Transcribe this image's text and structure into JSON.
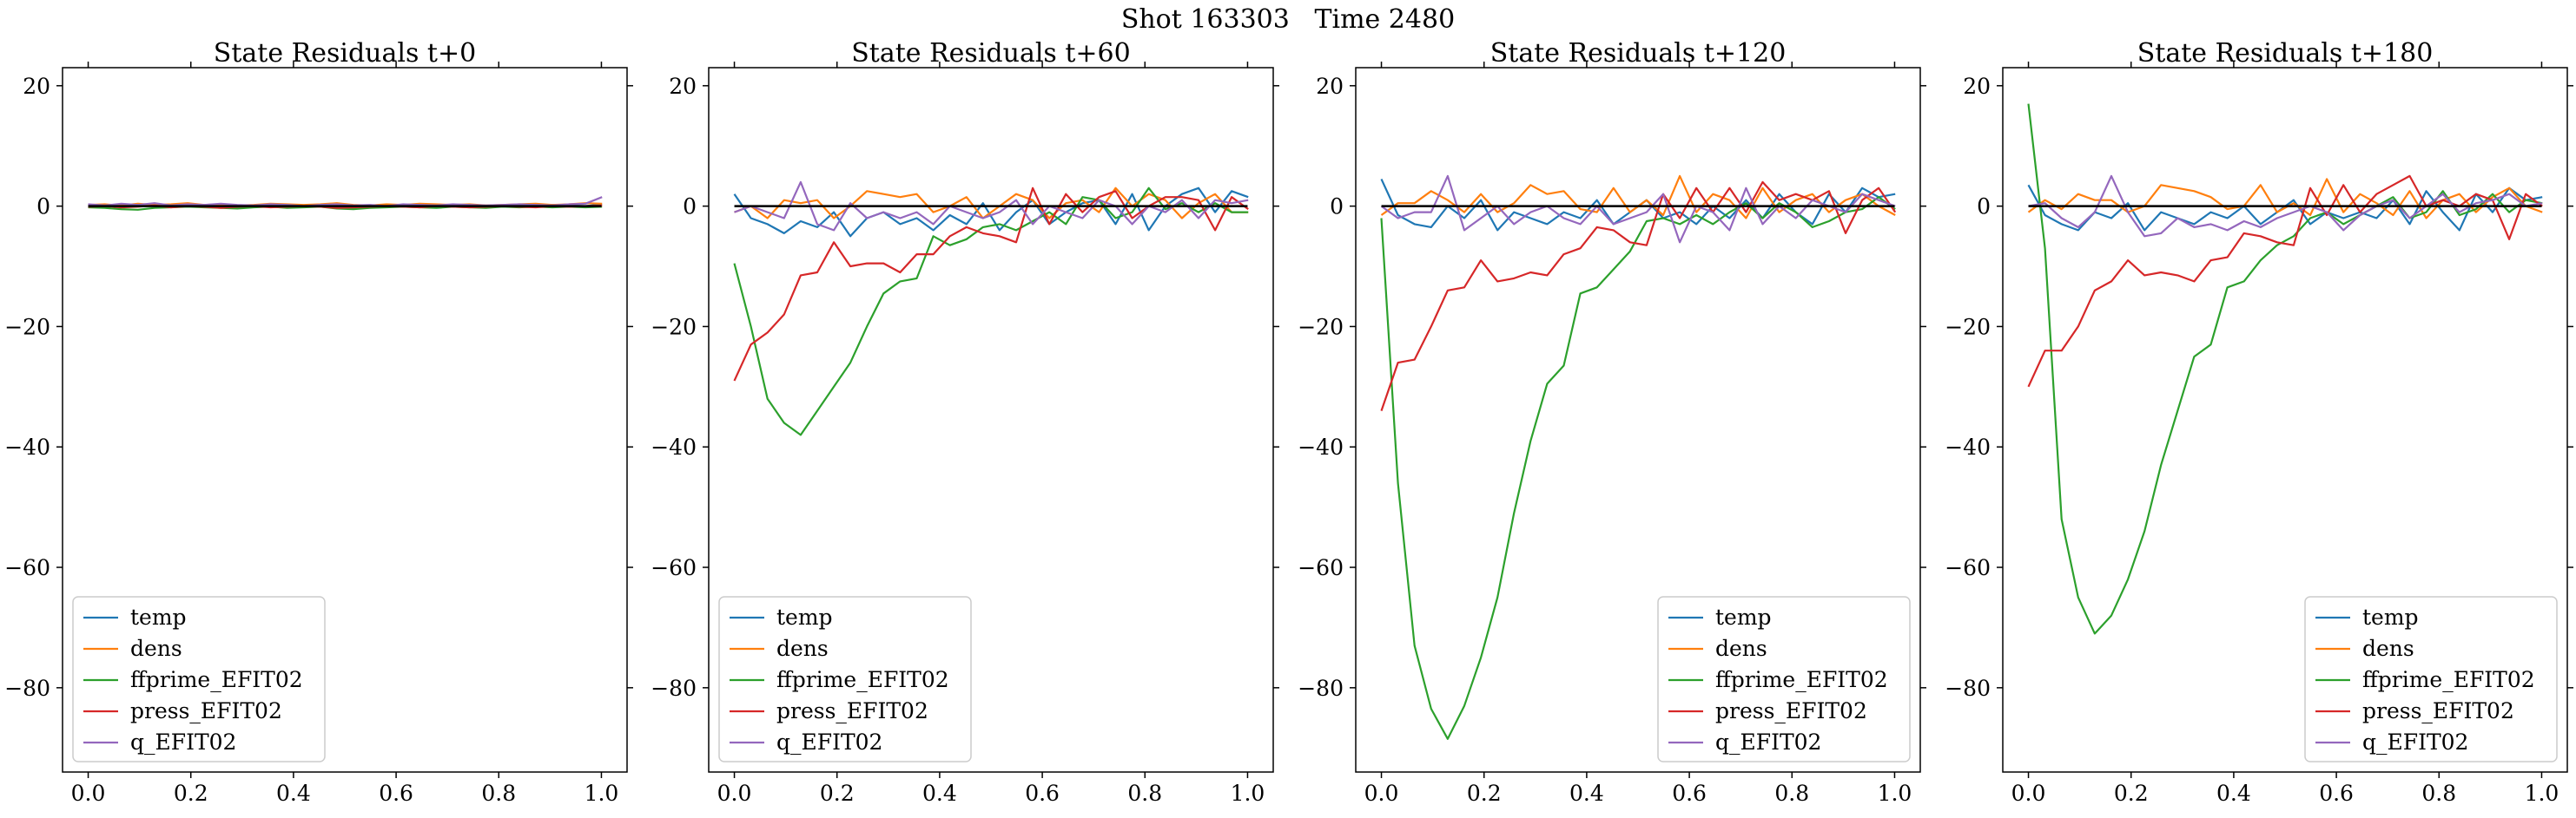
{
  "figure": {
    "suptitle": "Shot 163303   Time 2480"
  },
  "series_meta": [
    {
      "name": "temp",
      "color": "#1f77b4"
    },
    {
      "name": "dens",
      "color": "#ff7f0e"
    },
    {
      "name": "ffprime_EFIT02",
      "color": "#2ca02c"
    },
    {
      "name": "press_EFIT02",
      "color": "#d62728"
    },
    {
      "name": "q_EFIT02",
      "color": "#9467bd"
    }
  ],
  "chart_data": [
    {
      "type": "line",
      "title": "State Residuals t+0",
      "xlim": [
        -0.05,
        1.05
      ],
      "ylim": [
        -94,
        23
      ],
      "xticks": [
        "0.0",
        "0.2",
        "0.4",
        "0.6",
        "0.8",
        "1.0"
      ],
      "yticks": [
        "20",
        "0",
        "−20",
        "−40",
        "−60",
        "−80"
      ],
      "legend": "lower-left",
      "x_step": 0.0323,
      "n": 32,
      "series": [
        {
          "name": "temp",
          "color": "#1f77b4",
          "values": [
            0.1,
            0.0,
            -0.1,
            0.1,
            0.2,
            0.0,
            -0.1,
            0.1,
            0.0,
            -0.2,
            0.1,
            0.2,
            0.0,
            -0.1,
            0.1,
            0.0,
            -0.1,
            0.1,
            0.2,
            0.0,
            -0.1,
            0.0,
            0.1,
            0.2,
            0.0,
            -0.1,
            0.1,
            0.0,
            0.2,
            0.1,
            0.0,
            0.3
          ]
        },
        {
          "name": "dens",
          "color": "#ff7f0e",
          "values": [
            0.2,
            0.3,
            0.1,
            0.4,
            0.2,
            0.3,
            0.5,
            0.2,
            0.3,
            0.1,
            0.2,
            0.4,
            0.3,
            0.2,
            0.3,
            0.5,
            0.2,
            0.1,
            0.3,
            0.2,
            0.4,
            0.3,
            0.2,
            0.3,
            0.1,
            0.2,
            0.3,
            0.4,
            0.2,
            0.3,
            0.5,
            0.4
          ]
        },
        {
          "name": "ffprime_EFIT02",
          "color": "#2ca02c",
          "values": [
            -0.2,
            -0.3,
            -0.5,
            -0.6,
            -0.3,
            -0.2,
            -0.1,
            -0.2,
            -0.3,
            -0.4,
            -0.2,
            -0.1,
            -0.3,
            -0.2,
            -0.1,
            -0.4,
            -0.5,
            -0.3,
            -0.2,
            -0.1,
            -0.2,
            -0.3,
            -0.1,
            -0.2,
            -0.3,
            -0.1,
            -0.2,
            -0.1,
            -0.2,
            -0.1,
            -0.2,
            -0.1
          ]
        },
        {
          "name": "press_EFIT02",
          "color": "#d62728",
          "values": [
            -0.1,
            0.0,
            -0.2,
            -0.1,
            0.1,
            -0.2,
            0.0,
            -0.1,
            -0.3,
            -0.1,
            0.0,
            -0.2,
            -0.1,
            0.0,
            -0.1,
            -0.3,
            -0.2,
            -0.1,
            0.0,
            -0.1,
            -0.2,
            0.0,
            -0.1,
            -0.2,
            -0.1,
            0.0,
            -0.1,
            -0.2,
            0.0,
            -0.1,
            0.0,
            0.1
          ]
        },
        {
          "name": "q_EFIT02",
          "color": "#9467bd",
          "values": [
            0.3,
            0.1,
            0.4,
            0.2,
            0.5,
            0.1,
            0.3,
            0.2,
            0.4,
            0.2,
            0.1,
            0.3,
            0.2,
            0.0,
            0.2,
            0.3,
            0.1,
            0.2,
            0.0,
            0.3,
            0.2,
            0.1,
            0.3,
            0.2,
            0.1,
            0.2,
            0.3,
            0.2,
            0.1,
            0.3,
            0.4,
            1.5
          ]
        }
      ]
    },
    {
      "type": "line",
      "title": "State Residuals t+60",
      "xlim": [
        -0.05,
        1.05
      ],
      "ylim": [
        -94,
        23
      ],
      "xticks": [
        "0.0",
        "0.2",
        "0.4",
        "0.6",
        "0.8",
        "1.0"
      ],
      "yticks": [
        "20",
        "0",
        "−20",
        "−40",
        "−60",
        "−80"
      ],
      "legend": "lower-left",
      "x_step": 0.0323,
      "n": 32,
      "series": [
        {
          "name": "temp",
          "color": "#1f77b4",
          "values": [
            2.0,
            -2.0,
            -3.0,
            -4.5,
            -2.5,
            -3.5,
            -1.0,
            -5.0,
            -2.0,
            -1.0,
            -3.0,
            -2.0,
            -4.0,
            -1.5,
            -3.0,
            0.5,
            -4.0,
            -1.0,
            1.0,
            -3.0,
            -1.0,
            0.5,
            1.0,
            -3.0,
            2.0,
            -4.0,
            0.0,
            2.0,
            3.0,
            -1.0,
            2.5,
            1.5
          ]
        },
        {
          "name": "dens",
          "color": "#ff7f0e",
          "values": [
            -1.0,
            0.0,
            -2.0,
            1.0,
            0.5,
            1.0,
            -2.0,
            0.0,
            2.5,
            2.0,
            1.5,
            2.0,
            -1.0,
            0.0,
            1.5,
            -2.0,
            0.0,
            2.0,
            1.0,
            -2.0,
            0.5,
            1.0,
            -1.0,
            3.0,
            0.0,
            2.0,
            1.0,
            -2.0,
            0.5,
            2.0,
            -1.0,
            -1.0
          ]
        },
        {
          "name": "ffprime_EFIT02",
          "color": "#2ca02c",
          "values": [
            -9.5,
            -20.0,
            -32.0,
            -36.0,
            -38.0,
            -34.0,
            -30.0,
            -26.0,
            -20.0,
            -14.5,
            -12.5,
            -12.0,
            -5.0,
            -6.5,
            -5.5,
            -3.5,
            -3.0,
            -4.0,
            -2.5,
            -1.0,
            -3.0,
            1.5,
            1.0,
            -2.0,
            -1.0,
            3.0,
            -0.5,
            0.5,
            -1.0,
            0.5,
            -1.0,
            -1.0
          ]
        },
        {
          "name": "press_EFIT02",
          "color": "#d62728",
          "values": [
            -29.0,
            -23.0,
            -21.0,
            -18.0,
            -11.5,
            -11.0,
            -6.0,
            -10.0,
            -9.5,
            -9.5,
            -11.0,
            -8.0,
            -8.0,
            -5.0,
            -3.5,
            -4.5,
            -5.0,
            -6.0,
            3.0,
            -3.0,
            2.0,
            -1.0,
            1.5,
            2.5,
            -2.0,
            0.0,
            1.5,
            1.5,
            1.0,
            -4.0,
            1.5,
            -0.5
          ]
        },
        {
          "name": "q_EFIT02",
          "color": "#9467bd",
          "values": [
            -1.0,
            0.0,
            -1.0,
            -2.0,
            4.0,
            -3.0,
            -4.0,
            0.5,
            -2.0,
            -1.0,
            -2.0,
            -1.0,
            -3.0,
            0.0,
            -1.0,
            -2.0,
            -1.0,
            1.0,
            -3.0,
            0.0,
            -1.0,
            -2.0,
            1.0,
            0.0,
            -3.0,
            0.0,
            -1.0,
            1.0,
            -2.0,
            1.0,
            0.5,
            1.0
          ]
        }
      ]
    },
    {
      "type": "line",
      "title": "State Residuals t+120",
      "xlim": [
        -0.05,
        1.05
      ],
      "ylim": [
        -94,
        23
      ],
      "xticks": [
        "0.0",
        "0.2",
        "0.4",
        "0.6",
        "0.8",
        "1.0"
      ],
      "yticks": [
        "20",
        "0",
        "−20",
        "−40",
        "−60",
        "−80"
      ],
      "legend": "lower-right",
      "x_step": 0.0323,
      "n": 32,
      "series": [
        {
          "name": "temp",
          "color": "#1f77b4",
          "values": [
            4.5,
            -1.5,
            -3.0,
            -3.5,
            0.0,
            -2.0,
            1.0,
            -4.0,
            -1.0,
            -2.0,
            -3.0,
            -1.0,
            -2.0,
            1.0,
            -3.0,
            -1.0,
            1.0,
            -2.0,
            -1.0,
            -3.0,
            0.0,
            -2.0,
            1.0,
            -2.0,
            2.0,
            -1.0,
            -3.0,
            2.0,
            -1.0,
            3.0,
            1.5,
            2.0
          ]
        },
        {
          "name": "dens",
          "color": "#ff7f0e",
          "values": [
            -1.5,
            0.5,
            0.5,
            2.5,
            1.0,
            -1.0,
            2.0,
            -1.0,
            0.5,
            3.5,
            2.0,
            2.5,
            -0.5,
            -1.0,
            3.0,
            -1.0,
            1.0,
            -1.5,
            5.0,
            -1.0,
            2.0,
            1.0,
            -2.0,
            3.0,
            -1.0,
            1.0,
            2.0,
            -1.0,
            1.0,
            2.0,
            0.0,
            -1.5
          ]
        },
        {
          "name": "ffprime_EFIT02",
          "color": "#2ca02c",
          "values": [
            -2.0,
            -46.0,
            -73.0,
            -83.5,
            -88.5,
            -83.0,
            -75.0,
            -65.0,
            -51.0,
            -39.0,
            -29.5,
            -26.5,
            -14.5,
            -13.5,
            -10.5,
            -7.5,
            -2.5,
            -2.0,
            -3.0,
            -1.5,
            -3.0,
            -1.0,
            0.5,
            -2.0,
            0.5,
            -1.0,
            -3.5,
            -2.5,
            -1.0,
            -0.5,
            1.5,
            -0.5
          ]
        },
        {
          "name": "press_EFIT02",
          "color": "#d62728",
          "values": [
            -34.0,
            -26.0,
            -25.5,
            -20.0,
            -14.0,
            -13.5,
            -9.0,
            -12.5,
            -12.0,
            -11.0,
            -11.5,
            -8.0,
            -7.0,
            -3.5,
            -4.0,
            -6.0,
            -6.5,
            2.0,
            -2.0,
            3.0,
            -1.0,
            3.0,
            -1.0,
            4.0,
            1.0,
            2.0,
            1.0,
            2.5,
            -4.5,
            1.0,
            3.0,
            -1.0
          ]
        },
        {
          "name": "q_EFIT02",
          "color": "#9467bd",
          "values": [
            0.0,
            -2.0,
            -1.0,
            -1.0,
            5.0,
            -4.0,
            -2.0,
            0.0,
            -3.0,
            -1.0,
            0.0,
            -2.0,
            -3.0,
            0.0,
            -3.0,
            -2.0,
            -1.0,
            2.0,
            -6.0,
            0.0,
            -1.0,
            -4.0,
            3.0,
            -3.0,
            0.0,
            -2.0,
            1.0,
            0.0,
            -1.0,
            2.0,
            1.0,
            0.0
          ]
        }
      ]
    },
    {
      "type": "line",
      "title": "State Residuals t+180",
      "xlim": [
        -0.05,
        1.05
      ],
      "ylim": [
        -94,
        23
      ],
      "xticks": [
        "0.0",
        "0.2",
        "0.4",
        "0.6",
        "0.8",
        "1.0"
      ],
      "yticks": [
        "20",
        "0",
        "−20",
        "−40",
        "−60",
        "−80"
      ],
      "legend": "lower-right",
      "x_step": 0.0323,
      "n": 32,
      "series": [
        {
          "name": "temp",
          "color": "#1f77b4",
          "values": [
            3.5,
            -1.5,
            -3.0,
            -4.0,
            -1.0,
            -2.0,
            0.5,
            -4.0,
            -1.0,
            -2.0,
            -3.0,
            -1.0,
            -2.0,
            0.0,
            -3.0,
            -1.0,
            1.0,
            -3.0,
            -1.0,
            -2.0,
            -1.0,
            -2.0,
            1.0,
            -3.0,
            2.5,
            -1.0,
            -4.0,
            2.0,
            -1.0,
            3.0,
            1.0,
            1.5
          ]
        },
        {
          "name": "dens",
          "color": "#ff7f0e",
          "values": [
            -1.0,
            1.0,
            -0.5,
            2.0,
            1.0,
            1.0,
            -1.0,
            0.0,
            3.5,
            3.0,
            2.5,
            1.5,
            -0.5,
            0.0,
            3.5,
            -1.0,
            0.5,
            -1.5,
            4.5,
            -1.0,
            2.0,
            0.5,
            -1.5,
            2.5,
            -2.0,
            1.0,
            2.0,
            -1.0,
            1.5,
            3.0,
            0.0,
            -1.0
          ]
        },
        {
          "name": "ffprime_EFIT02",
          "color": "#2ca02c",
          "values": [
            17.0,
            -7.0,
            -52.0,
            -65.0,
            -71.0,
            -68.0,
            -62.0,
            -54.0,
            -43.0,
            -34.0,
            -25.0,
            -23.0,
            -13.5,
            -12.5,
            -9.0,
            -6.5,
            -5.0,
            -2.0,
            -1.0,
            -3.0,
            -1.5,
            0.0,
            1.5,
            -2.0,
            -1.0,
            2.5,
            -1.5,
            -0.5,
            2.0,
            -1.0,
            1.0,
            0.5
          ]
        },
        {
          "name": "press_EFIT02",
          "color": "#d62728",
          "values": [
            -30.0,
            -24.0,
            -24.0,
            -20.0,
            -14.0,
            -12.5,
            -9.0,
            -11.5,
            -11.0,
            -11.5,
            -12.5,
            -9.0,
            -8.5,
            -4.5,
            -5.0,
            -6.0,
            -6.5,
            3.0,
            -1.5,
            3.5,
            -1.0,
            2.0,
            3.5,
            5.0,
            0.0,
            1.0,
            0.0,
            2.0,
            1.0,
            -5.5,
            2.0,
            0.0
          ]
        },
        {
          "name": "q_EFIT02",
          "color": "#9467bd",
          "values": [
            0.0,
            0.5,
            -2.0,
            -3.5,
            -1.0,
            5.0,
            -1.0,
            -5.0,
            -4.5,
            -2.0,
            -3.5,
            -3.0,
            -4.0,
            -2.5,
            -3.5,
            -2.0,
            -1.0,
            0.0,
            -1.0,
            -4.0,
            -1.5,
            0.0,
            1.0,
            -2.0,
            0.0,
            2.0,
            -1.0,
            0.5,
            1.0,
            2.0,
            0.0,
            0.5
          ]
        }
      ]
    }
  ]
}
